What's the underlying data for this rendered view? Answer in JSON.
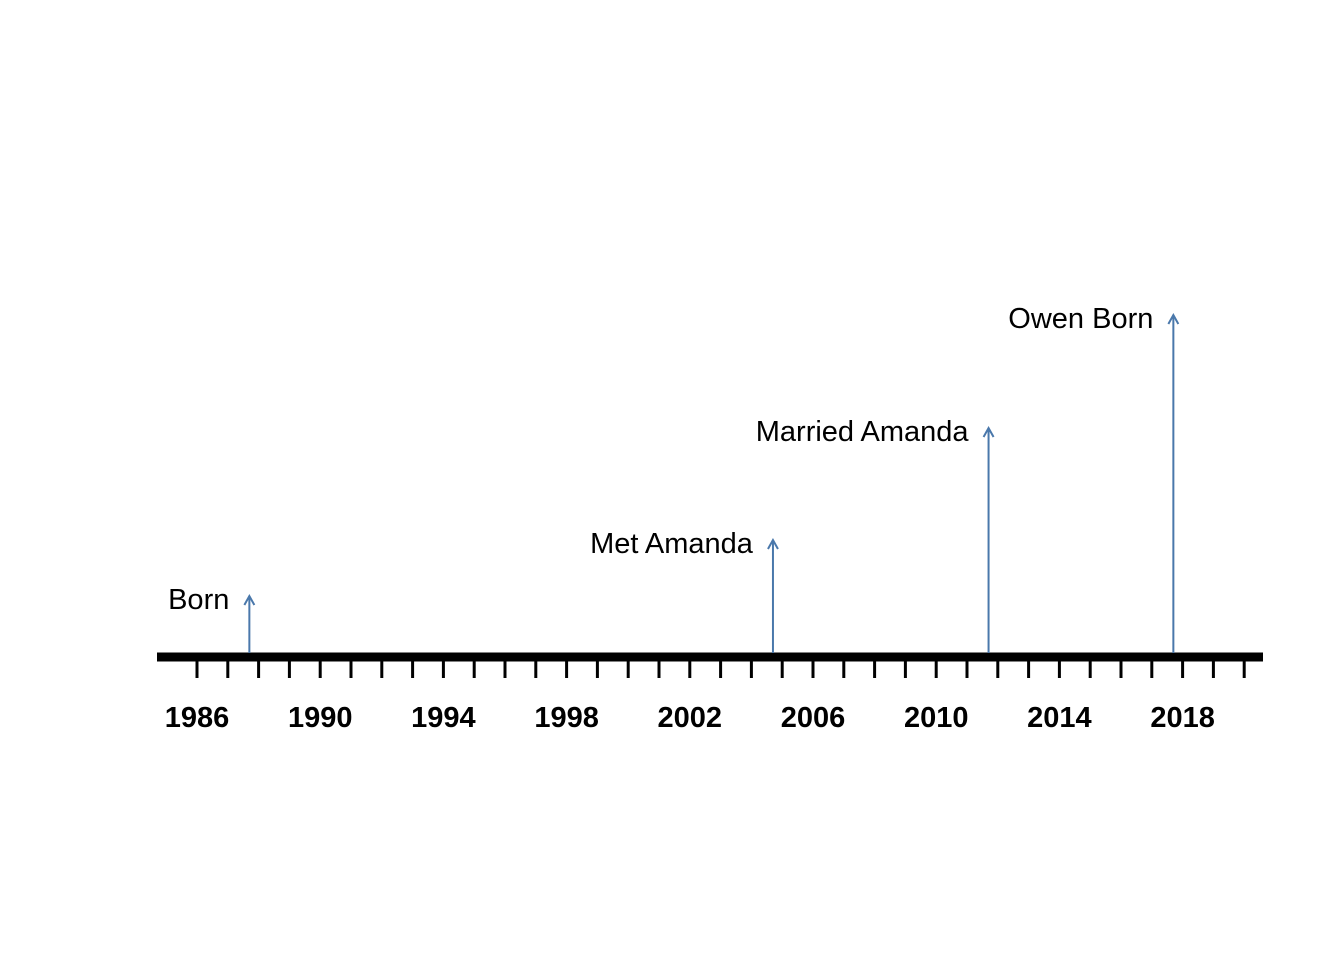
{
  "chart_data": {
    "type": "timeline",
    "x_ticks": [
      "1986",
      "1990",
      "1994",
      "1998",
      "2002",
      "2006",
      "2010",
      "2014",
      "2018"
    ],
    "minor_tick_step_years": 1,
    "xlim": [
      1985,
      2021
    ],
    "events": [
      {
        "label": "Born",
        "year": 1987.7,
        "level": 1
      },
      {
        "label": "Met Amanda",
        "year": 2004.7,
        "level": 2
      },
      {
        "label": "Married Amanda",
        "year": 2011.7,
        "level": 3
      },
      {
        "label": "Owen Born",
        "year": 2017.7,
        "level": 4
      }
    ],
    "colors": {
      "axis": "#000000",
      "event_arrow": "#4a78ab"
    }
  }
}
